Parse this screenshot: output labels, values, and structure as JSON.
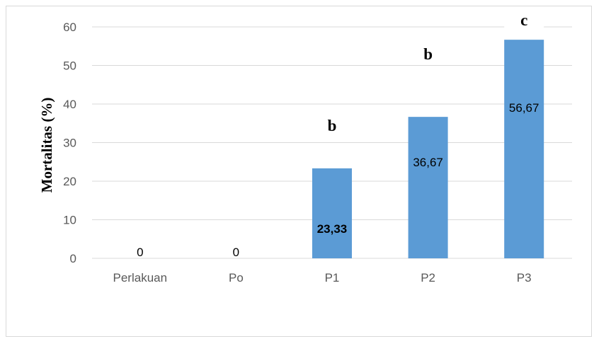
{
  "chart_data": {
    "type": "bar",
    "categories": [
      "Perlakuan",
      "Po",
      "P1",
      "P2",
      "P3"
    ],
    "values": [
      0,
      0,
      23.33,
      36.67,
      56.67
    ],
    "data_labels": [
      "0",
      "0",
      "23,33",
      "36,67",
      "56,67"
    ],
    "significance_letters": [
      "",
      "",
      "b",
      "b",
      "c"
    ],
    "ylabel": "Mortalitas (%)",
    "xlabel": "",
    "ylim": [
      0,
      60
    ],
    "yticks": [
      0,
      10,
      20,
      30,
      40,
      50,
      60
    ],
    "grid": true,
    "bar_color": "#5b9bd5",
    "grid_color": "#d9d9d9"
  }
}
